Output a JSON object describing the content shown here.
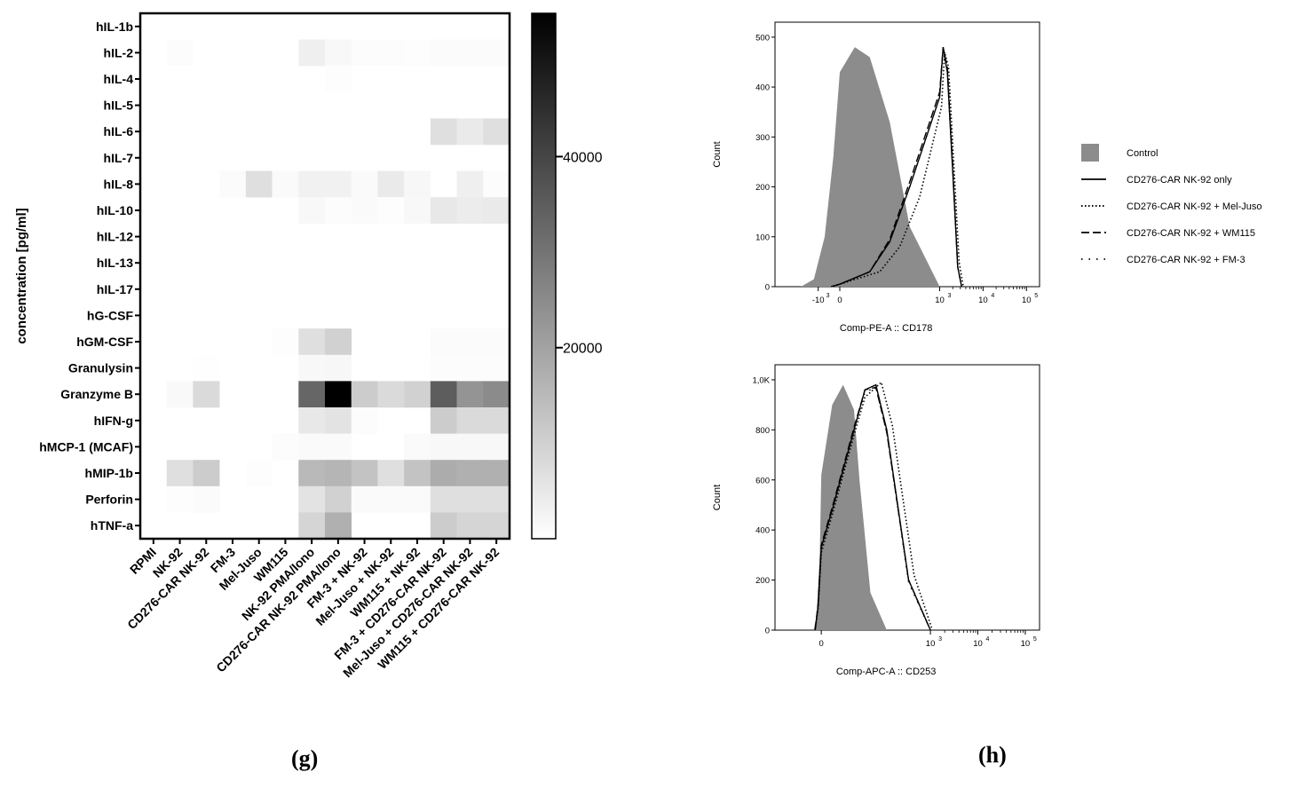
{
  "panel_labels": {
    "g": "(g)",
    "h": "(h)"
  },
  "chart_data": [
    {
      "type": "heatmap",
      "ylabel": "concentration [pg/ml]",
      "rows": [
        "hIL-1b",
        "hIL-2",
        "hIL-4",
        "hIL-5",
        "hIL-6",
        "hIL-7",
        "hIL-8",
        "hIL-10",
        "hIL-12",
        "hIL-13",
        "hIL-17",
        "hG-CSF",
        "hGM-CSF",
        "Granulysin",
        "Granzyme B",
        "hIFN-g",
        "hMCP-1 (MCAF)",
        "hMIP-1b",
        "Perforin",
        "hTNF-a"
      ],
      "columns": [
        "RPMI",
        "NK-92",
        "CD276-CAR NK-92",
        "FM-3",
        "Mel-Juso",
        "WM115",
        "NK-92 PMA/Iono",
        "CD276-CAR NK-92 PMA/Iono",
        "FM-3 + NK-92",
        "Mel-Juso + NK-92",
        "WM115 + NK-92",
        "FM-3 + CD276-CAR NK-92",
        "Mel-Juso + CD276-CAR NK-92",
        "WM115 + CD276-CAR NK-92"
      ],
      "values": [
        [
          0,
          0,
          0,
          0,
          0,
          0,
          0,
          0,
          0,
          0,
          0,
          0,
          0,
          0
        ],
        [
          0,
          600,
          0,
          0,
          0,
          0,
          3500,
          1500,
          700,
          700,
          500,
          900,
          900,
          900
        ],
        [
          0,
          0,
          0,
          0,
          0,
          0,
          0,
          500,
          0,
          0,
          0,
          0,
          0,
          0
        ],
        [
          0,
          0,
          0,
          0,
          0,
          0,
          0,
          0,
          0,
          0,
          0,
          0,
          0,
          0
        ],
        [
          0,
          0,
          0,
          0,
          0,
          0,
          0,
          0,
          0,
          0,
          0,
          7000,
          4500,
          7000
        ],
        [
          0,
          0,
          0,
          0,
          0,
          0,
          0,
          0,
          0,
          0,
          0,
          0,
          0,
          0
        ],
        [
          0,
          0,
          0,
          800,
          7000,
          1000,
          3000,
          3000,
          1000,
          4500,
          1800,
          0,
          3500,
          600
        ],
        [
          0,
          0,
          0,
          0,
          0,
          0,
          1500,
          700,
          1000,
          500,
          1500,
          5000,
          4000,
          4500
        ],
        [
          0,
          0,
          0,
          0,
          0,
          0,
          0,
          0,
          0,
          0,
          0,
          0,
          0,
          0
        ],
        [
          0,
          0,
          0,
          0,
          0,
          0,
          0,
          0,
          0,
          0,
          0,
          0,
          0,
          0
        ],
        [
          0,
          0,
          0,
          0,
          0,
          0,
          0,
          0,
          0,
          0,
          0,
          0,
          0,
          0
        ],
        [
          0,
          0,
          0,
          0,
          0,
          0,
          0,
          0,
          0,
          0,
          0,
          0,
          0,
          0
        ],
        [
          0,
          0,
          0,
          0,
          0,
          500,
          7000,
          10000,
          0,
          0,
          0,
          800,
          800,
          800
        ],
        [
          0,
          0,
          300,
          0,
          0,
          0,
          1500,
          1800,
          0,
          0,
          0,
          700,
          700,
          700
        ],
        [
          0,
          1200,
          8000,
          0,
          0,
          0,
          33000,
          55000,
          11000,
          8000,
          10000,
          35000,
          23000,
          25000
        ],
        [
          0,
          0,
          0,
          0,
          0,
          0,
          5000,
          6000,
          700,
          0,
          0,
          11000,
          8000,
          8000
        ],
        [
          0,
          0,
          0,
          0,
          0,
          600,
          1000,
          1000,
          0,
          0,
          1000,
          1500,
          1500,
          1500
        ],
        [
          0,
          7000,
          11000,
          0,
          500,
          0,
          15000,
          16000,
          13000,
          7000,
          13000,
          18000,
          17000,
          17000
        ],
        [
          0,
          500,
          800,
          0,
          0,
          0,
          6000,
          10000,
          1000,
          1000,
          1000,
          7000,
          7000,
          7000
        ],
        [
          0,
          0,
          0,
          0,
          0,
          0,
          9000,
          17000,
          0,
          0,
          0,
          11000,
          9000,
          9000
        ]
      ],
      "scale_max": 55000,
      "colorbar_ticks": [
        40000,
        20000
      ],
      "colormap": [
        "#ffffff",
        "#000000"
      ]
    },
    {
      "type": "line",
      "xlabel": "Comp-PE-A :: CD178",
      "ylabel": "Count",
      "ylim": [
        0,
        500
      ],
      "yticks": [
        "0",
        "100",
        "200",
        "300",
        "400",
        "500"
      ],
      "xscale": "biexponential",
      "xticks": [
        {
          "label": "-10",
          "exp": "3",
          "value": -1000
        },
        {
          "label": "0",
          "exp": "",
          "value": 0
        },
        {
          "label": "10",
          "exp": "3",
          "value": 1000
        },
        {
          "label": "10",
          "exp": "4",
          "value": 10000
        },
        {
          "label": "10",
          "exp": "5",
          "value": 100000
        }
      ],
      "series": [
        {
          "name": "Control",
          "style": "filled",
          "x": [
            -1800,
            -1200,
            -700,
            -300,
            0,
            150,
            300,
            500,
            700,
            1000
          ],
          "y": [
            0,
            15,
            100,
            260,
            430,
            480,
            460,
            330,
            120,
            0
          ]
        },
        {
          "name": "CD276-CAR NK-92 only",
          "style": "solid",
          "x": [
            -400,
            0,
            300,
            500,
            700,
            1000,
            1200,
            1500,
            2000,
            2600,
            3200
          ],
          "y": [
            0,
            5,
            30,
            90,
            200,
            380,
            480,
            430,
            230,
            40,
            0
          ]
        },
        {
          "name": "CD276-CAR NK-92 + Mel-Juso",
          "style": "dotted",
          "x": [
            -300,
            0,
            400,
            600,
            800,
            1100,
            1300,
            1600,
            2100,
            2800,
            3500
          ],
          "y": [
            0,
            5,
            30,
            80,
            180,
            360,
            470,
            440,
            250,
            50,
            0
          ]
        },
        {
          "name": "CD276-CAR NK-92 + WM115",
          "style": "dashed",
          "x": [
            -400,
            0,
            300,
            500,
            700,
            1000,
            1200,
            1500,
            2000,
            2600,
            3200
          ],
          "y": [
            0,
            5,
            30,
            95,
            210,
            390,
            480,
            440,
            240,
            40,
            0
          ]
        },
        {
          "name": "CD276-CAR NK-92 + FM-3",
          "style": "dashdot",
          "x": [
            -400,
            0,
            300,
            500,
            700,
            1000,
            1200,
            1500,
            2000,
            2600,
            3200
          ],
          "y": [
            0,
            5,
            30,
            90,
            200,
            380,
            475,
            430,
            230,
            40,
            0
          ]
        }
      ]
    },
    {
      "type": "line",
      "xlabel": "Comp-APC-A :: CD253",
      "ylabel": "Count",
      "ylim": [
        0,
        1000
      ],
      "yticks": [
        "0",
        "200",
        "400",
        "600",
        "800",
        "1,0K"
      ],
      "xscale": "biexponential",
      "xticks": [
        {
          "label": "0",
          "exp": "",
          "value": 0
        },
        {
          "label": "10",
          "exp": "3",
          "value": 1000
        },
        {
          "label": "10",
          "exp": "4",
          "value": 10000
        },
        {
          "label": "10",
          "exp": "5",
          "value": 100000
        }
      ],
      "series": [
        {
          "name": "Control",
          "style": "filled",
          "x": [
            -500,
            -300,
            -100,
            0,
            100,
            200,
            300,
            350,
            450,
            600
          ],
          "y": [
            0,
            60,
            300,
            620,
            900,
            980,
            880,
            600,
            150,
            0
          ]
        },
        {
          "name": "CD276-CAR NK-92 only",
          "style": "solid",
          "x": [
            -400,
            -200,
            0,
            100,
            200,
            300,
            400,
            500,
            600,
            800,
            1000
          ],
          "y": [
            0,
            100,
            330,
            480,
            640,
            800,
            960,
            980,
            800,
            200,
            0
          ]
        },
        {
          "name": "CD276-CAR NK-92 + Mel-Juso",
          "style": "dotted",
          "x": [
            -400,
            -200,
            0,
            100,
            200,
            300,
            400,
            550,
            650,
            850,
            1100
          ],
          "y": [
            0,
            90,
            310,
            460,
            620,
            780,
            930,
            990,
            820,
            220,
            0
          ]
        },
        {
          "name": "CD276-CAR NK-92 + WM115",
          "style": "dashed",
          "x": [
            -400,
            -200,
            0,
            100,
            200,
            300,
            400,
            500,
            600,
            800,
            1000
          ],
          "y": [
            0,
            110,
            340,
            490,
            650,
            810,
            960,
            970,
            790,
            200,
            0
          ]
        },
        {
          "name": "CD276-CAR NK-92 + FM-3",
          "style": "dashdot",
          "x": [
            -400,
            -200,
            0,
            100,
            200,
            300,
            400,
            500,
            600,
            800,
            1000
          ],
          "y": [
            0,
            100,
            330,
            480,
            640,
            800,
            950,
            970,
            790,
            190,
            0
          ]
        }
      ]
    }
  ],
  "legend": [
    {
      "name": "Control",
      "style": "filled"
    },
    {
      "name": "CD276-CAR NK-92 only",
      "style": "solid"
    },
    {
      "name": "CD276-CAR NK-92 + Mel-Juso",
      "style": "dotted"
    },
    {
      "name": "CD276-CAR NK-92 + WM115",
      "style": "dashed"
    },
    {
      "name": "CD276-CAR NK-92 + FM-3",
      "style": "dashdot"
    }
  ],
  "colors": {
    "control_fill": "#8c8c8c",
    "line": "#000000",
    "axis": "#000000"
  }
}
